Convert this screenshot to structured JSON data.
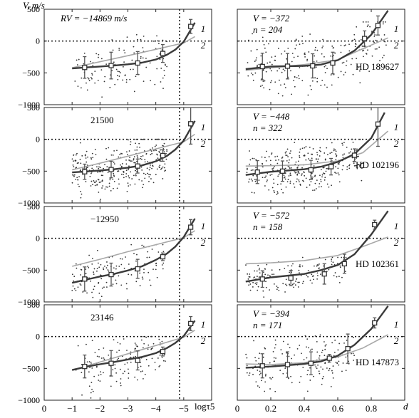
{
  "figure": {
    "y_axis_label": "V, m/s",
    "x_axis_label_left": "logτ5",
    "x_axis_label_right": "d"
  },
  "chart_data": [
    {
      "type": "scatter",
      "column": "left",
      "row": 0,
      "annotation": "RV = −14869 m/s",
      "xlim": [
        0,
        -6
      ],
      "ylim": [
        -1000,
        500
      ],
      "xticks": [
        0,
        -1,
        -2,
        -3,
        -4,
        -5
      ],
      "xticklabels": [
        "0",
        "−1",
        "−2",
        "−3",
        "−4",
        "−5"
      ],
      "yticks": [
        500,
        0,
        -500,
        -1000
      ],
      "yticklabels": [
        "500",
        "0",
        "−500",
        "−1000"
      ],
      "ref_line_y": 0,
      "ref_line_x": -4.85,
      "curve_labels": [
        "1",
        "2"
      ],
      "scatter_range": {
        "x": [
          -1.0,
          -4.4
        ],
        "y": [
          -950,
          100
        ],
        "count": 120,
        "trend": [
          [
            -1.0,
            -440
          ],
          [
            -2.5,
            -380
          ],
          [
            -4.2,
            -240
          ]
        ]
      },
      "binned": {
        "x": [
          -1.45,
          -2.4,
          -3.35,
          -4.25,
          -5.25
        ],
        "y": [
          -415,
          -385,
          -345,
          -195,
          230
        ],
        "err": [
          170,
          210,
          180,
          140,
          110
        ]
      },
      "fit_curve_1": {
        "x": [
          -1.0,
          -1.5,
          -2.0,
          -2.5,
          -3.0,
          -3.5,
          -4.0,
          -4.4,
          -4.7,
          -5.0,
          -5.4
        ],
        "y": [
          -430,
          -415,
          -400,
          -385,
          -365,
          -340,
          -290,
          -215,
          -135,
          -10,
          290
        ]
      },
      "fit_curve_2": {
        "x": [
          -1.0,
          -2.0,
          -3.0,
          -4.0,
          -5.0,
          -5.4
        ],
        "y": [
          -420,
          -325,
          -230,
          -130,
          -30,
          70
        ]
      }
    },
    {
      "type": "scatter",
      "column": "right",
      "row": 0,
      "annotation": [
        "V = −372",
        "n = 204"
      ],
      "star": "HD 189627",
      "xlim": [
        0,
        1.0
      ],
      "ylim": [
        -1000,
        500
      ],
      "xticks": [
        0,
        0.2,
        0.4,
        0.6,
        0.8
      ],
      "xticklabels": [
        "0",
        "0.2",
        "0.4",
        "0.6",
        "0.8"
      ],
      "yticks": [
        500,
        0,
        -500,
        -1000
      ],
      "yticklabels": [
        "",
        "",
        "",
        ""
      ],
      "ref_line_y": 0,
      "curve_labels": [
        "1",
        "2"
      ],
      "scatter_range": {
        "x": [
          0.05,
          0.9
        ],
        "y": [
          -900,
          300
        ],
        "count": 220,
        "trend": [
          [
            0.05,
            -420
          ],
          [
            0.6,
            -330
          ],
          [
            0.9,
            200
          ]
        ]
      },
      "binned": {
        "x": [
          0.15,
          0.3,
          0.45,
          0.57,
          0.76,
          0.84
        ],
        "y": [
          -400,
          -395,
          -390,
          -345,
          40,
          245
        ],
        "err": [
          210,
          200,
          190,
          170,
          120,
          150
        ]
      },
      "fit_curve_1": {
        "x": [
          0.05,
          0.2,
          0.4,
          0.5,
          0.6,
          0.7,
          0.8,
          0.9
        ],
        "y": [
          -440,
          -400,
          -390,
          -370,
          -300,
          -150,
          100,
          480
        ]
      },
      "fit_curve_2": {
        "x": [
          0.05,
          0.2,
          0.4,
          0.6,
          0.75,
          0.9
        ],
        "y": [
          -460,
          -420,
          -370,
          -295,
          -120,
          50
        ]
      }
    },
    {
      "type": "scatter",
      "column": "left",
      "row": 1,
      "annotation": "21500",
      "xlim": [
        0,
        -6
      ],
      "ylim": [
        -1000,
        500
      ],
      "xticks": [
        0,
        -1,
        -2,
        -3,
        -4,
        -5
      ],
      "xticklabels": [
        "0",
        "−1",
        "−2",
        "−3",
        "−4",
        "−5"
      ],
      "yticks": [
        500,
        0,
        -500,
        -1000
      ],
      "yticklabels": [
        "500",
        "0",
        "−500",
        "−1000"
      ],
      "ref_line_y": 0,
      "ref_line_x": -4.85,
      "curve_labels": [
        "1",
        "2"
      ],
      "scatter_range": {
        "x": [
          -1.0,
          -4.4
        ],
        "y": [
          -1000,
          0
        ],
        "count": 300,
        "trend": [
          [
            -1.0,
            -520
          ],
          [
            -2.5,
            -470
          ],
          [
            -4.2,
            -280
          ]
        ]
      },
      "binned": {
        "x": [
          -1.45,
          -2.4,
          -3.35,
          -4.25,
          -5.25
        ],
        "y": [
          -510,
          -475,
          -420,
          -255,
          245
        ],
        "err": [
          120,
          130,
          110,
          90,
          320
        ]
      },
      "fit_curve_1": {
        "x": [
          -1.0,
          -1.5,
          -2.0,
          -2.5,
          -3.0,
          -3.5,
          -4.0,
          -4.4,
          -4.7,
          -5.0,
          -5.4
        ],
        "y": [
          -520,
          -505,
          -490,
          -470,
          -445,
          -410,
          -345,
          -260,
          -160,
          -20,
          290
        ]
      },
      "fit_curve_2": {
        "x": [
          -1.0,
          -2.0,
          -3.0,
          -4.0,
          -5.0,
          -5.4
        ],
        "y": [
          -480,
          -375,
          -265,
          -150,
          -40,
          80
        ]
      }
    },
    {
      "type": "scatter",
      "column": "right",
      "row": 1,
      "annotation": [
        "V = −448",
        "n = 322"
      ],
      "star": "HD 102196",
      "xlim": [
        0,
        1.0
      ],
      "ylim": [
        -1000,
        500
      ],
      "xticks": [
        0,
        0.2,
        0.4,
        0.6,
        0.8
      ],
      "xticklabels": [
        "0",
        "0.2",
        "0.4",
        "0.6",
        "0.8"
      ],
      "yticks": [
        500,
        0,
        -500,
        -1000
      ],
      "yticklabels": [
        "",
        "",
        "",
        ""
      ],
      "ref_line_y": 0,
      "curve_labels": [
        "1",
        "2"
      ],
      "scatter_range": {
        "x": [
          0.05,
          0.75
        ],
        "y": [
          -950,
          0
        ],
        "count": 320,
        "trend": [
          [
            0.05,
            -520
          ],
          [
            0.5,
            -440
          ],
          [
            0.75,
            -230
          ]
        ]
      },
      "binned": {
        "x": [
          0.12,
          0.27,
          0.44,
          0.56,
          0.7,
          0.84
        ],
        "y": [
          -515,
          -500,
          -480,
          -430,
          -250,
          240
        ],
        "err": [
          180,
          160,
          150,
          130,
          100,
          350
        ]
      },
      "fit_curve_1": {
        "x": [
          0.05,
          0.2,
          0.4,
          0.5,
          0.6,
          0.7,
          0.8,
          0.88
        ],
        "y": [
          -560,
          -510,
          -470,
          -430,
          -355,
          -230,
          20,
          420
        ]
      },
      "fit_curve_2": {
        "x": [
          0.05,
          0.2,
          0.4,
          0.6,
          0.75,
          0.9
        ],
        "y": [
          -420,
          -415,
          -400,
          -340,
          -210,
          130
        ]
      }
    },
    {
      "type": "scatter",
      "column": "left",
      "row": 2,
      "annotation": "−12950",
      "xlim": [
        0,
        -6
      ],
      "ylim": [
        -1000,
        500
      ],
      "xticks": [
        0,
        -1,
        -2,
        -3,
        -4,
        -5
      ],
      "xticklabels": [
        "0",
        "−1",
        "−2",
        "−3",
        "−4",
        "−5"
      ],
      "yticks": [
        500,
        0,
        -500,
        -1000
      ],
      "yticklabels": [
        "500",
        "0",
        "−500",
        "−1000"
      ],
      "ref_line_y": 0,
      "ref_line_x": -4.85,
      "curve_labels": [
        "1",
        "2"
      ],
      "scatter_range": {
        "x": [
          -1.0,
          -4.4
        ],
        "y": [
          -1000,
          -100
        ],
        "count": 130,
        "trend": [
          [
            -1.0,
            -680
          ],
          [
            -2.5,
            -560
          ],
          [
            -4.2,
            -300
          ]
        ]
      },
      "binned": {
        "x": [
          -1.45,
          -2.4,
          -3.35,
          -4.25,
          -5.25
        ],
        "y": [
          -640,
          -570,
          -480,
          -290,
          175
        ],
        "err": [
          190,
          180,
          150,
          60,
          120
        ]
      },
      "fit_curve_1": {
        "x": [
          -1.0,
          -1.5,
          -2.0,
          -2.5,
          -3.0,
          -3.5,
          -4.0,
          -4.4,
          -4.7,
          -5.0,
          -5.4
        ],
        "y": [
          -700,
          -650,
          -600,
          -560,
          -505,
          -440,
          -340,
          -240,
          -130,
          20,
          310
        ]
      },
      "fit_curve_2": {
        "x": [
          -1.0,
          -2.0,
          -3.0,
          -4.0,
          -5.0,
          -5.4
        ],
        "y": [
          -440,
          -330,
          -210,
          -100,
          10,
          120
        ]
      }
    },
    {
      "type": "scatter",
      "column": "right",
      "row": 2,
      "annotation": [
        "V = −572",
        "n = 158"
      ],
      "star": "HD 102361",
      "xlim": [
        0,
        1.0
      ],
      "ylim": [
        -1000,
        500
      ],
      "xticks": [
        0,
        0.2,
        0.4,
        0.6,
        0.8
      ],
      "xticklabels": [
        "0",
        "0.2",
        "0.4",
        "0.6",
        "0.8"
      ],
      "yticks": [
        500,
        0,
        -500,
        -1000
      ],
      "yticklabels": [
        "",
        "",
        "",
        ""
      ],
      "ref_line_y": 0,
      "curve_labels": [
        "1",
        "2"
      ],
      "scatter_range": {
        "x": [
          0.05,
          0.65
        ],
        "y": [
          -950,
          -300
        ],
        "count": 150,
        "trend": [
          [
            0.05,
            -640
          ],
          [
            0.4,
            -580
          ],
          [
            0.65,
            -400
          ]
        ]
      },
      "binned": {
        "x": [
          0.15,
          0.32,
          0.52,
          0.64,
          0.82
        ],
        "y": [
          -640,
          -625,
          -560,
          -400,
          215
        ],
        "err": [
          130,
          120,
          160,
          150,
          70
        ]
      },
      "fit_curve_1": {
        "x": [
          0.05,
          0.2,
          0.4,
          0.5,
          0.6,
          0.7,
          0.8,
          0.9
        ],
        "y": [
          -680,
          -615,
          -560,
          -500,
          -420,
          -250,
          60,
          430
        ]
      },
      "fit_curve_2": {
        "x": [
          0.05,
          0.2,
          0.4,
          0.6,
          0.75,
          0.9
        ],
        "y": [
          -400,
          -385,
          -350,
          -270,
          -130,
          20
        ]
      }
    },
    {
      "type": "scatter",
      "column": "left",
      "row": 3,
      "annotation": "23146",
      "xlim": [
        0,
        -6
      ],
      "ylim": [
        -1000,
        500
      ],
      "xticks": [
        0,
        -1,
        -2,
        -3,
        -4,
        -5
      ],
      "xticklabels": [
        "0",
        "−1",
        "−2",
        "−3",
        "−4",
        "−5"
      ],
      "yticks": [
        500,
        0,
        -500,
        -1000
      ],
      "yticklabels": [
        "500",
        "0",
        "−500",
        "−1000"
      ],
      "ref_line_y": 0,
      "ref_line_x": -4.85,
      "curve_labels": [
        "1",
        "2"
      ],
      "scatter_range": {
        "x": [
          -1.0,
          -4.4
        ],
        "y": [
          -1000,
          0
        ],
        "count": 140,
        "trend": [
          [
            -1.0,
            -510
          ],
          [
            -2.5,
            -420
          ],
          [
            -4.2,
            -250
          ]
        ]
      },
      "binned": {
        "x": [
          -1.45,
          -2.4,
          -3.35,
          -4.25,
          -5.25
        ],
        "y": [
          -470,
          -420,
          -375,
          -235,
          205
        ],
        "err": [
          180,
          200,
          150,
          70,
          110
        ]
      },
      "fit_curve_1": {
        "x": [
          -1.0,
          -1.5,
          -2.0,
          -2.5,
          -3.0,
          -3.5,
          -4.0,
          -4.4,
          -4.7,
          -5.0,
          -5.4
        ],
        "y": [
          -525,
          -475,
          -435,
          -400,
          -360,
          -320,
          -260,
          -180,
          -100,
          10,
          250
        ]
      },
      "fit_curve_2": {
        "x": [
          -1.0,
          -2.0,
          -3.0,
          -4.0,
          -5.0,
          -5.4
        ],
        "y": [
          -530,
          -400,
          -270,
          -140,
          -10,
          100
        ]
      }
    },
    {
      "type": "scatter",
      "column": "right",
      "row": 3,
      "annotation": [
        "V = −394",
        "n = 171"
      ],
      "star": "HD 147873",
      "xlim": [
        0,
        1.0
      ],
      "ylim": [
        -1000,
        500
      ],
      "xticks": [
        0,
        0.2,
        0.4,
        0.6,
        0.8
      ],
      "xticklabels": [
        "0",
        "0.2",
        "0.4",
        "0.6",
        "0.8"
      ],
      "yticks": [
        500,
        0,
        -500,
        -1000
      ],
      "yticklabels": [
        "",
        "",
        "",
        ""
      ],
      "ref_line_y": 0,
      "curve_labels": [
        "1",
        "2"
      ],
      "scatter_range": {
        "x": [
          0.05,
          0.7
        ],
        "y": [
          -950,
          100
        ],
        "count": 170,
        "trend": [
          [
            0.05,
            -480
          ],
          [
            0.45,
            -420
          ],
          [
            0.7,
            -250
          ]
        ]
      },
      "binned": {
        "x": [
          0.15,
          0.3,
          0.44,
          0.55,
          0.66,
          0.82
        ],
        "y": [
          -460,
          -440,
          -420,
          -340,
          -190,
          215
        ],
        "err": [
          190,
          200,
          180,
          60,
          230,
          80
        ]
      },
      "fit_curve_1": {
        "x": [
          0.05,
          0.2,
          0.4,
          0.5,
          0.6,
          0.7,
          0.8,
          0.9
        ],
        "y": [
          -490,
          -470,
          -430,
          -390,
          -300,
          -130,
          120,
          480
        ]
      },
      "fit_curve_2": {
        "x": [
          0.05,
          0.2,
          0.4,
          0.6,
          0.75,
          0.9
        ],
        "y": [
          -430,
          -440,
          -410,
          -320,
          -180,
          30
        ]
      }
    }
  ]
}
